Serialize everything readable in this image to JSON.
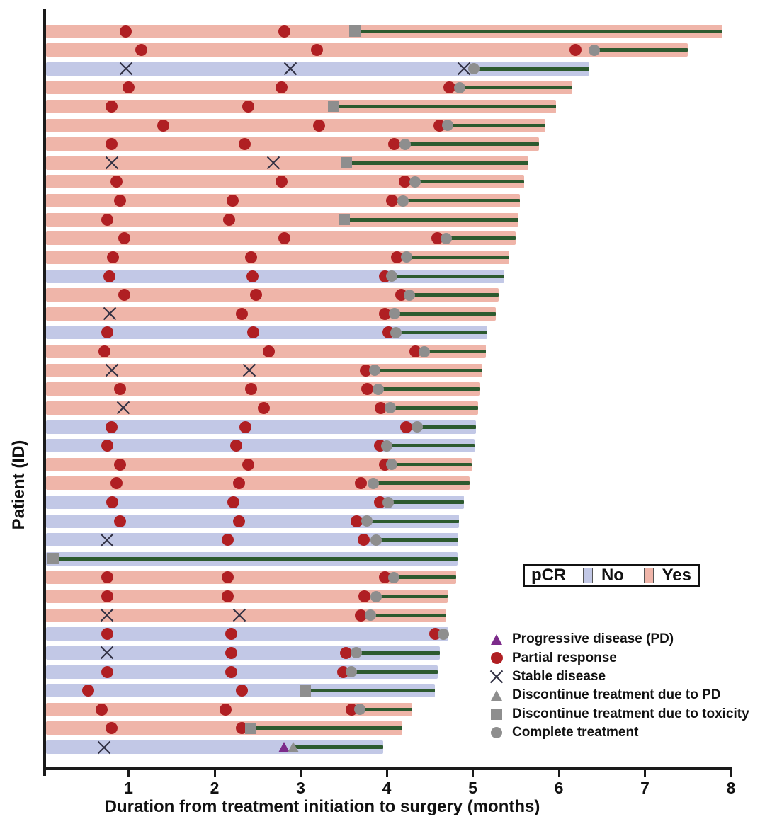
{
  "figure": {
    "y_axis_label": "Patient (ID)",
    "x_axis_label": "Duration from treatment initiation to surgery (months)"
  },
  "pcr_legend": {
    "title": "pCR",
    "no_label": "No",
    "yes_label": "Yes",
    "no_color": "#c2c8e6",
    "yes_color": "#efb5a9"
  },
  "marker_legend": [
    {
      "type": "progressive-disease",
      "label": "Progressive disease (PD)"
    },
    {
      "type": "partial-response",
      "label": "Partial response"
    },
    {
      "type": "stable-disease",
      "label": "Stable disease"
    },
    {
      "type": "discontinue-pd",
      "label": "Discontinue treatment due to PD"
    },
    {
      "type": "discontinue-toxicity",
      "label": "Discontinue treatment due to toxicity"
    },
    {
      "type": "complete-treatment",
      "label": "Complete treatment"
    }
  ],
  "colors": {
    "pcr_yes_bar": "#efb5a9",
    "pcr_no_bar": "#c2c8e6",
    "partial_response": "#b01f23",
    "treatment_line": "#2d5a2f",
    "gray_marker": "#8e8e8e",
    "progressive_disease": "#7c2b8a",
    "axis": "#1a1a1a"
  },
  "chart_data": {
    "type": "swimmer",
    "title": "",
    "xlabel": "Duration from treatment initiation to surgery (months)",
    "ylabel": "Patient (ID)",
    "xlim": [
      0,
      8
    ],
    "x_ticks": [
      1,
      2,
      3,
      4,
      5,
      6,
      7,
      8
    ],
    "grid": false,
    "marker_types": {
      "PR": "partial-response",
      "SD": "stable-disease",
      "PD": "progressive-disease",
      "DPD": "discontinue-pd",
      "TOX": "discontinue-toxicity",
      "CT": "complete-treatment"
    },
    "rows": [
      {
        "pcr": "Yes",
        "surgery_month": 7.9,
        "line_start": 3.63,
        "markers": [
          {
            "type": "PR",
            "month": 0.97
          },
          {
            "type": "PR",
            "month": 2.81
          },
          {
            "type": "TOX",
            "month": 3.63
          }
        ]
      },
      {
        "pcr": "Yes",
        "surgery_month": 7.5,
        "line_start": 6.41,
        "markers": [
          {
            "type": "PR",
            "month": 1.15
          },
          {
            "type": "PR",
            "month": 3.19
          },
          {
            "type": "PR",
            "month": 6.19
          },
          {
            "type": "CT",
            "month": 6.41
          }
        ]
      },
      {
        "pcr": "No",
        "surgery_month": 6.35,
        "line_start": 5.01,
        "markers": [
          {
            "type": "SD",
            "month": 0.97
          },
          {
            "type": "SD",
            "month": 2.88
          },
          {
            "type": "SD",
            "month": 4.9
          },
          {
            "type": "CT",
            "month": 5.01
          }
        ]
      },
      {
        "pcr": "Yes",
        "surgery_month": 6.16,
        "line_start": 4.85,
        "markers": [
          {
            "type": "PR",
            "month": 1.0
          },
          {
            "type": "PR",
            "month": 2.78
          },
          {
            "type": "PR",
            "month": 4.73
          },
          {
            "type": "CT",
            "month": 4.85
          }
        ]
      },
      {
        "pcr": "Yes",
        "surgery_month": 5.97,
        "line_start": 3.38,
        "markers": [
          {
            "type": "PR",
            "month": 0.8
          },
          {
            "type": "PR",
            "month": 2.39
          },
          {
            "type": "TOX",
            "month": 3.38
          }
        ]
      },
      {
        "pcr": "Yes",
        "surgery_month": 5.84,
        "line_start": 4.71,
        "markers": [
          {
            "type": "PR",
            "month": 1.4
          },
          {
            "type": "PR",
            "month": 3.21
          },
          {
            "type": "PR",
            "month": 4.61
          },
          {
            "type": "CT",
            "month": 4.71
          }
        ]
      },
      {
        "pcr": "Yes",
        "surgery_month": 5.77,
        "line_start": 4.21,
        "markers": [
          {
            "type": "PR",
            "month": 0.8
          },
          {
            "type": "PR",
            "month": 2.35
          },
          {
            "type": "PR",
            "month": 4.09
          },
          {
            "type": "CT",
            "month": 4.21
          }
        ]
      },
      {
        "pcr": "Yes",
        "surgery_month": 5.65,
        "line_start": 3.53,
        "markers": [
          {
            "type": "SD",
            "month": 0.81
          },
          {
            "type": "SD",
            "month": 2.68
          },
          {
            "type": "TOX",
            "month": 3.53
          }
        ]
      },
      {
        "pcr": "Yes",
        "surgery_month": 5.6,
        "line_start": 4.33,
        "markers": [
          {
            "type": "PR",
            "month": 0.86
          },
          {
            "type": "PR",
            "month": 2.78
          },
          {
            "type": "PR",
            "month": 4.21
          },
          {
            "type": "CT",
            "month": 4.33
          }
        ]
      },
      {
        "pcr": "Yes",
        "surgery_month": 5.55,
        "line_start": 4.19,
        "markers": [
          {
            "type": "PR",
            "month": 0.9
          },
          {
            "type": "PR",
            "month": 2.21
          },
          {
            "type": "PR",
            "month": 4.06
          },
          {
            "type": "CT",
            "month": 4.19
          }
        ]
      },
      {
        "pcr": "Yes",
        "surgery_month": 5.53,
        "line_start": 3.51,
        "markers": [
          {
            "type": "PR",
            "month": 0.75
          },
          {
            "type": "PR",
            "month": 2.17
          },
          {
            "type": "TOX",
            "month": 3.51
          }
        ]
      },
      {
        "pcr": "Yes",
        "surgery_month": 5.5,
        "line_start": 4.69,
        "markers": [
          {
            "type": "PR",
            "month": 0.95
          },
          {
            "type": "PR",
            "month": 2.81
          },
          {
            "type": "PR",
            "month": 4.59
          },
          {
            "type": "CT",
            "month": 4.69
          }
        ]
      },
      {
        "pcr": "Yes",
        "surgery_month": 5.42,
        "line_start": 4.23,
        "markers": [
          {
            "type": "PR",
            "month": 0.82
          },
          {
            "type": "PR",
            "month": 2.42
          },
          {
            "type": "PR",
            "month": 4.12
          },
          {
            "type": "CT",
            "month": 4.23
          }
        ]
      },
      {
        "pcr": "No",
        "surgery_month": 5.37,
        "line_start": 4.06,
        "markers": [
          {
            "type": "PR",
            "month": 0.78
          },
          {
            "type": "PR",
            "month": 2.44
          },
          {
            "type": "PR",
            "month": 3.98
          },
          {
            "type": "CT",
            "month": 4.06
          }
        ]
      },
      {
        "pcr": "Yes",
        "surgery_month": 5.3,
        "line_start": 4.26,
        "markers": [
          {
            "type": "PR",
            "month": 0.95
          },
          {
            "type": "PR",
            "month": 2.48
          },
          {
            "type": "PR",
            "month": 4.17
          },
          {
            "type": "CT",
            "month": 4.26
          }
        ]
      },
      {
        "pcr": "Yes",
        "surgery_month": 5.27,
        "line_start": 4.09,
        "markers": [
          {
            "type": "SD",
            "month": 0.78
          },
          {
            "type": "PR",
            "month": 2.32
          },
          {
            "type": "PR",
            "month": 3.98
          },
          {
            "type": "CT",
            "month": 4.09
          }
        ]
      },
      {
        "pcr": "No",
        "surgery_month": 5.17,
        "line_start": 4.11,
        "markers": [
          {
            "type": "PR",
            "month": 0.75
          },
          {
            "type": "PR",
            "month": 2.45
          },
          {
            "type": "PR",
            "month": 4.02
          },
          {
            "type": "CT",
            "month": 4.11
          }
        ]
      },
      {
        "pcr": "Yes",
        "surgery_month": 5.15,
        "line_start": 4.44,
        "markers": [
          {
            "type": "PR",
            "month": 0.72
          },
          {
            "type": "PR",
            "month": 2.63
          },
          {
            "type": "PR",
            "month": 4.33
          },
          {
            "type": "CT",
            "month": 4.44
          }
        ]
      },
      {
        "pcr": "Yes",
        "surgery_month": 5.11,
        "line_start": 3.86,
        "markers": [
          {
            "type": "SD",
            "month": 0.81
          },
          {
            "type": "SD",
            "month": 2.4
          },
          {
            "type": "PR",
            "month": 3.76
          },
          {
            "type": "CT",
            "month": 3.86
          }
        ]
      },
      {
        "pcr": "Yes",
        "surgery_month": 5.08,
        "line_start": 3.9,
        "markers": [
          {
            "type": "PR",
            "month": 0.9
          },
          {
            "type": "PR",
            "month": 2.42
          },
          {
            "type": "PR",
            "month": 3.77
          },
          {
            "type": "CT",
            "month": 3.9
          }
        ]
      },
      {
        "pcr": "Yes",
        "surgery_month": 5.06,
        "line_start": 4.04,
        "markers": [
          {
            "type": "SD",
            "month": 0.94
          },
          {
            "type": "PR",
            "month": 2.57
          },
          {
            "type": "PR",
            "month": 3.93
          },
          {
            "type": "CT",
            "month": 4.04
          }
        ]
      },
      {
        "pcr": "No",
        "surgery_month": 5.04,
        "line_start": 4.35,
        "markers": [
          {
            "type": "PR",
            "month": 0.8
          },
          {
            "type": "PR",
            "month": 2.36
          },
          {
            "type": "PR",
            "month": 4.23
          },
          {
            "type": "CT",
            "month": 4.35
          }
        ]
      },
      {
        "pcr": "No",
        "surgery_month": 5.02,
        "line_start": 4.0,
        "markers": [
          {
            "type": "PR",
            "month": 0.75
          },
          {
            "type": "PR",
            "month": 2.25
          },
          {
            "type": "PR",
            "month": 3.92
          },
          {
            "type": "CT",
            "month": 4.0
          }
        ]
      },
      {
        "pcr": "Yes",
        "surgery_month": 4.99,
        "line_start": 4.06,
        "markers": [
          {
            "type": "PR",
            "month": 0.9
          },
          {
            "type": "PR",
            "month": 2.39
          },
          {
            "type": "PR",
            "month": 3.98
          },
          {
            "type": "CT",
            "month": 4.06
          }
        ]
      },
      {
        "pcr": "Yes",
        "surgery_month": 4.96,
        "line_start": 3.84,
        "markers": [
          {
            "type": "PR",
            "month": 0.86
          },
          {
            "type": "PR",
            "month": 2.28
          },
          {
            "type": "PR",
            "month": 3.7
          },
          {
            "type": "CT",
            "month": 3.84
          }
        ]
      },
      {
        "pcr": "No",
        "surgery_month": 4.9,
        "line_start": 4.02,
        "markers": [
          {
            "type": "PR",
            "month": 0.81
          },
          {
            "type": "PR",
            "month": 2.22
          },
          {
            "type": "PR",
            "month": 3.92
          },
          {
            "type": "CT",
            "month": 4.02
          }
        ]
      },
      {
        "pcr": "No",
        "surgery_month": 4.84,
        "line_start": 3.77,
        "markers": [
          {
            "type": "PR",
            "month": 0.9
          },
          {
            "type": "PR",
            "month": 2.28
          },
          {
            "type": "PR",
            "month": 3.65
          },
          {
            "type": "CT",
            "month": 3.77
          }
        ]
      },
      {
        "pcr": "No",
        "surgery_month": 4.83,
        "line_start": 3.88,
        "markers": [
          {
            "type": "SD",
            "month": 0.75
          },
          {
            "type": "PR",
            "month": 2.15
          },
          {
            "type": "PR",
            "month": 3.73
          },
          {
            "type": "CT",
            "month": 3.88
          }
        ]
      },
      {
        "pcr": "No",
        "surgery_month": 4.82,
        "line_start": 0.12,
        "markers": [
          {
            "type": "TOX",
            "month": 0.12
          }
        ]
      },
      {
        "pcr": "Yes",
        "surgery_month": 4.81,
        "line_start": 4.08,
        "markers": [
          {
            "type": "PR",
            "month": 0.75
          },
          {
            "type": "PR",
            "month": 2.15
          },
          {
            "type": "PR",
            "month": 3.98
          },
          {
            "type": "CT",
            "month": 4.08
          }
        ]
      },
      {
        "pcr": "Yes",
        "surgery_month": 4.71,
        "line_start": 3.88,
        "markers": [
          {
            "type": "PR",
            "month": 0.75
          },
          {
            "type": "PR",
            "month": 2.15
          },
          {
            "type": "PR",
            "month": 3.74
          },
          {
            "type": "CT",
            "month": 3.88
          }
        ]
      },
      {
        "pcr": "Yes",
        "surgery_month": 4.68,
        "line_start": 3.81,
        "markers": [
          {
            "type": "SD",
            "month": 0.75
          },
          {
            "type": "SD",
            "month": 2.29
          },
          {
            "type": "PR",
            "month": 3.7
          },
          {
            "type": "CT",
            "month": 3.81
          }
        ]
      },
      {
        "pcr": "No",
        "surgery_month": 4.72,
        "line_start": 4.66,
        "markers": [
          {
            "type": "PR",
            "month": 0.75
          },
          {
            "type": "PR",
            "month": 2.19
          },
          {
            "type": "PR",
            "month": 4.56
          },
          {
            "type": "CT",
            "month": 4.66
          }
        ]
      },
      {
        "pcr": "No",
        "surgery_month": 4.62,
        "line_start": 3.65,
        "markers": [
          {
            "type": "SD",
            "month": 0.75
          },
          {
            "type": "PR",
            "month": 2.19
          },
          {
            "type": "PR",
            "month": 3.53
          },
          {
            "type": "CT",
            "month": 3.65
          }
        ]
      },
      {
        "pcr": "No",
        "surgery_month": 4.59,
        "line_start": 3.59,
        "markers": [
          {
            "type": "PR",
            "month": 0.75
          },
          {
            "type": "PR",
            "month": 2.19
          },
          {
            "type": "PR",
            "month": 3.49
          },
          {
            "type": "CT",
            "month": 3.59
          }
        ]
      },
      {
        "pcr": "No",
        "surgery_month": 4.56,
        "line_start": 3.05,
        "markers": [
          {
            "type": "PR",
            "month": 0.53
          },
          {
            "type": "PR",
            "month": 2.32
          },
          {
            "type": "TOX",
            "month": 3.05
          }
        ]
      },
      {
        "pcr": "Yes",
        "surgery_month": 4.3,
        "line_start": 3.69,
        "markers": [
          {
            "type": "PR",
            "month": 0.69
          },
          {
            "type": "PR",
            "month": 2.13
          },
          {
            "type": "PR",
            "month": 3.59
          },
          {
            "type": "CT",
            "month": 3.69
          }
        ]
      },
      {
        "pcr": "Yes",
        "surgery_month": 4.18,
        "line_start": 2.42,
        "markers": [
          {
            "type": "PR",
            "month": 0.8
          },
          {
            "type": "PR",
            "month": 2.32
          },
          {
            "type": "TOX",
            "month": 2.42
          }
        ]
      },
      {
        "pcr": "No",
        "surgery_month": 3.96,
        "line_start": 2.91,
        "markers": [
          {
            "type": "SD",
            "month": 0.72
          },
          {
            "type": "PD",
            "month": 2.81
          },
          {
            "type": "DPD",
            "month": 2.91
          }
        ]
      }
    ]
  }
}
